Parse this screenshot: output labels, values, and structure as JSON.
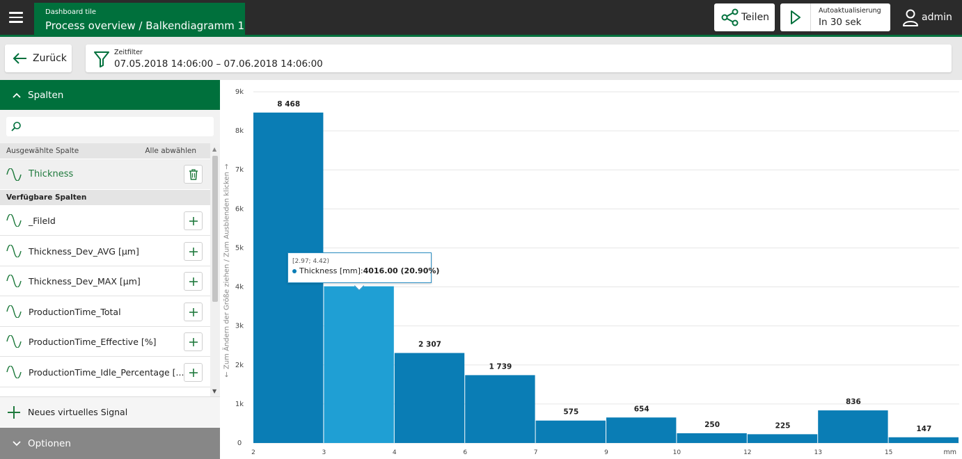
{
  "header": {
    "tile_small": "Dashboard tile",
    "tile_title": "Process overview / Balkendiagramm 1",
    "share_label": "Teilen",
    "auto_small": "Autoaktualisierung",
    "auto_big": "In 30 sek",
    "user_label": "admin"
  },
  "toolbar": {
    "back_label": "Zurück",
    "filter_small": "Zeitfilter",
    "filter_range": "07.05.2018 14:06:00 – 07.06.2018 14:06:00"
  },
  "sidebar": {
    "spalten_label": "Spalten",
    "search_value": "",
    "selected_header": "Ausgewählte Spalte",
    "deselect_all": "Alle abwählen",
    "selected_item": "Thickness",
    "available_header": "Verfügbare Spalten",
    "available_items": [
      "_FileId",
      "Thickness_Dev_AVG [µm]",
      "Thickness_Dev_MAX [µm]",
      "ProductionTime_Total",
      "ProductionTime_Effective [%]",
      "ProductionTime_Idle_Percentage [..."
    ],
    "new_signal_label": "Neues virtuelles Signal",
    "optionen_label": "Optionen"
  },
  "resize_hint": "← Zum Ändern der Größe ziehen / Zum Ausblenden klicken →",
  "tooltip": {
    "range": "[2.97; 4.42)",
    "series": "Thickness [mm]:",
    "value": "4016.00 (20.90%)"
  },
  "colors": {
    "brand_green": "#00703c",
    "bar": "#0a7db5",
    "bar_highlight": "#1f9fd4",
    "topbar": "#2b2b2b"
  },
  "chart_data": {
    "type": "bar",
    "bin_edges": [
      2,
      3,
      4,
      6,
      7,
      9,
      10,
      12,
      13,
      15
    ],
    "bins": [
      {
        "x0": 2,
        "x1": 3,
        "value": 8468,
        "label": "8 468"
      },
      {
        "x0": 3,
        "x1": 4,
        "value": 4016,
        "label": "",
        "highlight": true
      },
      {
        "x0": 4,
        "x1": 6,
        "value": 2307,
        "label": "2 307"
      },
      {
        "x0": 6,
        "x1": 7,
        "value": 1739,
        "label": "1 739"
      },
      {
        "x0": 7,
        "x1": 9,
        "value": 575,
        "label": "575"
      },
      {
        "x0": 9,
        "x1": 10,
        "value": 654,
        "label": "654"
      },
      {
        "x0": 10,
        "x1": 12,
        "value": 250,
        "label": "250"
      },
      {
        "x0": 12,
        "x1": 13,
        "value": 225,
        "label": "225"
      },
      {
        "x0": 13,
        "x1": 15,
        "value": 836,
        "label": "836"
      },
      {
        "x0": 15,
        "x1": 16,
        "value": 147,
        "label": "147"
      }
    ],
    "y_ticks": [
      "0",
      "1k",
      "2k",
      "3k",
      "4k",
      "5k",
      "6k",
      "7k",
      "8k",
      "9k"
    ],
    "ylim": [
      0,
      9000
    ],
    "x_unit": "mm",
    "grid": true
  }
}
